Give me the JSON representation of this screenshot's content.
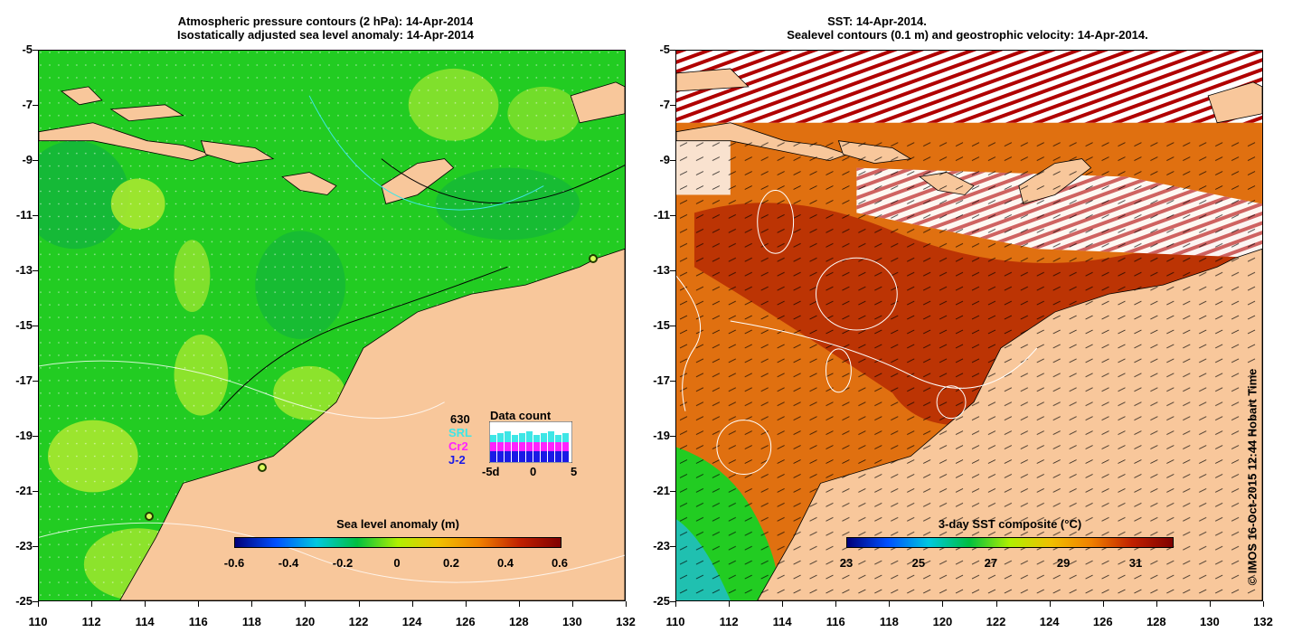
{
  "left_panel": {
    "title_line1": "Atmospheric pressure contours (2 hPa): 14-Apr-2014",
    "title_line2": "Isostatically adjusted sea level anomaly: 14-Apr-2014",
    "y_ticks": [
      "-5",
      "-7",
      "-9",
      "-11",
      "-13",
      "-15",
      "-17",
      "-19",
      "-21",
      "-23",
      "-25"
    ],
    "x_ticks": [
      "110",
      "112",
      "114",
      "116",
      "118",
      "120",
      "122",
      "124",
      "126",
      "128",
      "130",
      "132"
    ],
    "colorbar": {
      "title": "Sea level anomaly (m)",
      "labels": [
        "-0.6",
        "-0.4",
        "-0.2",
        "0",
        "0.2",
        "0.4",
        "0.6"
      ],
      "colors": [
        "#00007a",
        "#0050ff",
        "#00c8e0",
        "#00c040",
        "#b0f000",
        "#f0c000",
        "#f08000",
        "#c02000",
        "#800000"
      ]
    },
    "data_count": {
      "title": "Data count",
      "total": "630",
      "series": [
        "SRL",
        "Cr2",
        "J-2"
      ],
      "series_colors": [
        "#3ee6e6",
        "#ff22ff",
        "#1a1ae6"
      ],
      "x_labels": [
        "-5d",
        "0",
        "5"
      ]
    }
  },
  "right_panel": {
    "title_line1": "SST: 14-Apr-2014.",
    "title_line2": "Sealevel contours (0.1 m) and geostrophic velocity: 14-Apr-2014.",
    "y_ticks": [
      "-5",
      "-7",
      "-9",
      "-11",
      "-13",
      "-15",
      "-17",
      "-19",
      "-21",
      "-23",
      "-25"
    ],
    "x_ticks": [
      "110",
      "112",
      "114",
      "116",
      "118",
      "120",
      "122",
      "124",
      "126",
      "128",
      "130",
      "132"
    ],
    "colorbar": {
      "title": "3-day SST composite (°C)",
      "labels": [
        "23",
        "25",
        "27",
        "29",
        "31"
      ],
      "colors": [
        "#00007a",
        "#0050ff",
        "#00c8e0",
        "#00c040",
        "#b0f000",
        "#f0c000",
        "#f08000",
        "#c02000",
        "#800000"
      ]
    }
  },
  "credit": "© IMOS 16-Oct-2015 12:44 Hobart Time",
  "colors": {
    "land": "#f8c79b",
    "sla_green": "#22cc22",
    "sst_orange": "#e07010",
    "sst_dark": "#b02000"
  }
}
